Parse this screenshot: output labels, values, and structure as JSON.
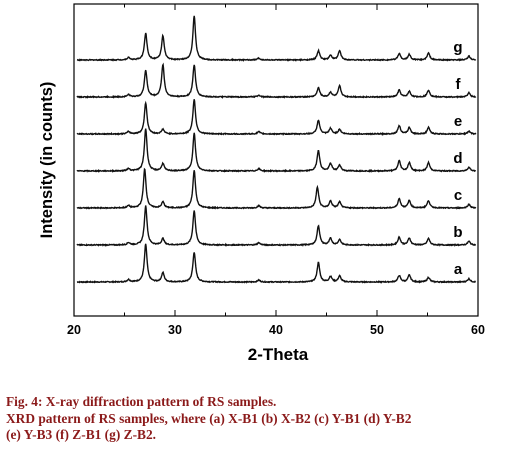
{
  "chart_data": {
    "type": "line",
    "xlabel": "2-Theta",
    "ylabel": "Intensity (in counts)",
    "xlim": [
      20,
      60
    ],
    "xticks": [
      20,
      30,
      40,
      50,
      60
    ],
    "grid": false,
    "legend": "none",
    "line_color": "#111111",
    "series": [
      {
        "name": "a",
        "peaks": [
          [
            25.4,
            0.05
          ],
          [
            27.1,
            0.82
          ],
          [
            28.8,
            0.2
          ],
          [
            31.9,
            0.65
          ],
          [
            38.3,
            0.04
          ],
          [
            44.2,
            0.42
          ],
          [
            45.4,
            0.12
          ],
          [
            46.3,
            0.13
          ],
          [
            52.2,
            0.14
          ],
          [
            53.2,
            0.15
          ],
          [
            55.1,
            0.1
          ],
          [
            59.1,
            0.07
          ]
        ]
      },
      {
        "name": "b",
        "peaks": [
          [
            25.4,
            0.05
          ],
          [
            27.1,
            0.85
          ],
          [
            28.8,
            0.14
          ],
          [
            31.9,
            0.75
          ],
          [
            38.3,
            0.05
          ],
          [
            44.2,
            0.42
          ],
          [
            45.4,
            0.14
          ],
          [
            46.3,
            0.12
          ],
          [
            52.2,
            0.17
          ],
          [
            53.2,
            0.15
          ],
          [
            55.1,
            0.14
          ],
          [
            59.1,
            0.08
          ]
        ]
      },
      {
        "name": "c",
        "peaks": [
          [
            25.4,
            0.05
          ],
          [
            27.0,
            0.85
          ],
          [
            28.8,
            0.13
          ],
          [
            31.9,
            0.82
          ],
          [
            38.3,
            0.05
          ],
          [
            44.1,
            0.45
          ],
          [
            45.4,
            0.15
          ],
          [
            46.3,
            0.13
          ],
          [
            52.2,
            0.2
          ],
          [
            53.2,
            0.16
          ],
          [
            55.1,
            0.16
          ],
          [
            59.1,
            0.08
          ]
        ]
      },
      {
        "name": "d",
        "peaks": [
          [
            25.4,
            0.05
          ],
          [
            27.1,
            0.92
          ],
          [
            28.8,
            0.16
          ],
          [
            31.9,
            0.82
          ],
          [
            38.3,
            0.05
          ],
          [
            44.2,
            0.45
          ],
          [
            45.4,
            0.16
          ],
          [
            46.3,
            0.13
          ],
          [
            52.2,
            0.22
          ],
          [
            53.2,
            0.18
          ],
          [
            55.1,
            0.18
          ],
          [
            59.1,
            0.08
          ]
        ]
      },
      {
        "name": "e",
        "peaks": [
          [
            25.4,
            0.05
          ],
          [
            27.1,
            0.68
          ],
          [
            28.8,
            0.1
          ],
          [
            31.9,
            0.75
          ],
          [
            38.3,
            0.05
          ],
          [
            44.2,
            0.3
          ],
          [
            45.4,
            0.12
          ],
          [
            46.3,
            0.1
          ],
          [
            52.2,
            0.18
          ],
          [
            53.2,
            0.14
          ],
          [
            55.1,
            0.14
          ],
          [
            59.1,
            0.06
          ]
        ]
      },
      {
        "name": "f",
        "peaks": [
          [
            25.4,
            0.05
          ],
          [
            27.1,
            0.58
          ],
          [
            28.8,
            0.7
          ],
          [
            31.9,
            0.7
          ],
          [
            38.3,
            0.04
          ],
          [
            44.2,
            0.2
          ],
          [
            45.4,
            0.1
          ],
          [
            46.3,
            0.24
          ],
          [
            52.2,
            0.15
          ],
          [
            53.2,
            0.12
          ],
          [
            55.1,
            0.15
          ],
          [
            59.1,
            0.09
          ]
        ]
      },
      {
        "name": "g",
        "peaks": [
          [
            25.4,
            0.05
          ],
          [
            27.1,
            0.58
          ],
          [
            28.8,
            0.52
          ],
          [
            31.9,
            0.95
          ],
          [
            38.3,
            0.04
          ],
          [
            44.2,
            0.2
          ],
          [
            45.4,
            0.1
          ],
          [
            46.3,
            0.2
          ],
          [
            52.2,
            0.14
          ],
          [
            53.2,
            0.12
          ],
          [
            55.1,
            0.15
          ],
          [
            59.1,
            0.08
          ]
        ]
      }
    ]
  },
  "caption": {
    "line1": "Fig. 4: X-ray diffraction pattern of RS samples.",
    "line2": "XRD pattern of RS samples, where (a) X-B1 (b) X-B2 (c) Y-B1 (d) Y-B2",
    "line3": "(e) Y-B3 (f) Z-B1 (g) Z-B2."
  }
}
